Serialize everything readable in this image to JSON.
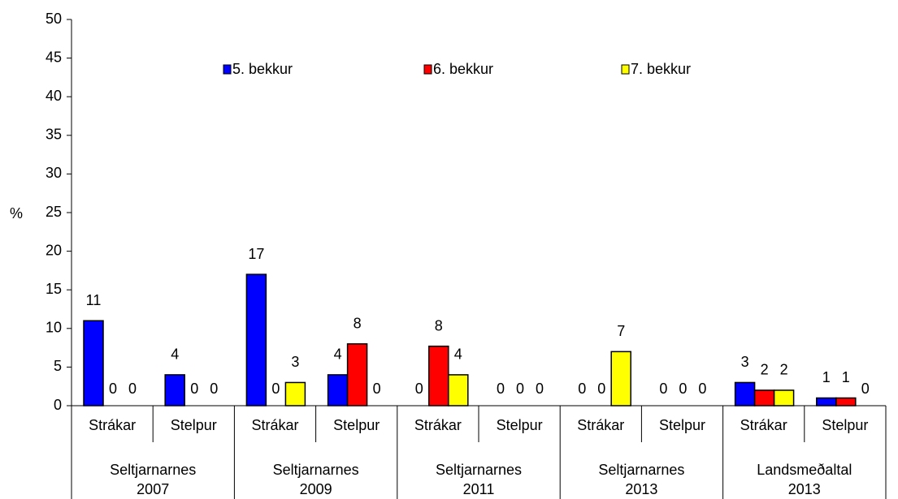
{
  "chart_data": {
    "type": "bar",
    "y_label": "%",
    "categories": [
      "Strákar",
      "Stelpur",
      "Strákar",
      "Stelpur",
      "Strákar",
      "Stelpur",
      "Strákar",
      "Stelpur",
      "Strákar",
      "Stelpur"
    ],
    "groups": [
      [
        "Seltjarnarnes",
        "2007"
      ],
      [
        "Seltjarnarnes",
        "2009"
      ],
      [
        "Seltjarnarnes",
        "2011"
      ],
      [
        "Seltjarnarnes",
        "2013"
      ],
      [
        "Landsmeðaltal",
        "2013"
      ]
    ],
    "series": [
      {
        "name": "5. bekkur",
        "color": "#0000ff",
        "values": [
          11,
          4,
          17,
          4,
          0,
          0,
          0,
          0,
          3,
          1
        ]
      },
      {
        "name": "6. bekkur",
        "color": "#ff0000",
        "values": [
          0,
          0,
          0,
          8,
          7.7,
          0,
          0,
          0,
          2,
          1
        ],
        "value_labels": [
          "0",
          "0",
          "0",
          "8",
          "8",
          "0",
          "0",
          "0",
          "2",
          "1"
        ]
      },
      {
        "name": "7. bekkur",
        "color": "#ffff00",
        "values": [
          0,
          0,
          3,
          0,
          4,
          0,
          7,
          0,
          2,
          0
        ]
      }
    ],
    "ylim": [
      0,
      50
    ],
    "yticks": [
      0,
      5,
      10,
      15,
      20,
      25,
      30,
      35,
      40,
      45,
      50
    ],
    "legend": "top"
  }
}
